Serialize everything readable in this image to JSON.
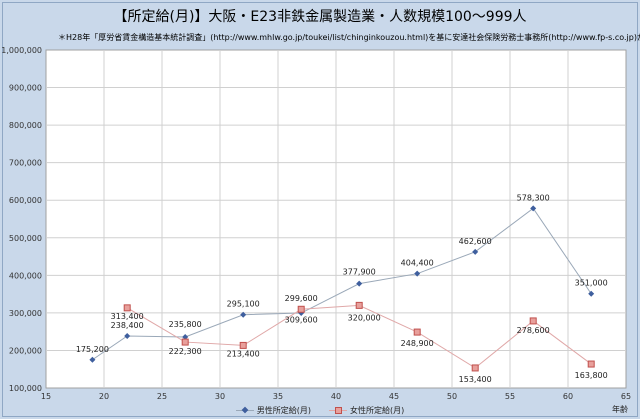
{
  "title": "【所定給(月)】大阪・E23非鉄金属製造業・人数規模100～999人",
  "subtitle": "＊H28年「厚労省賃金構造基本統計調査」(http://www.mhlw.go.jp/toukei/list/chinginkouzou.html)を基に安達社会保険労務士事務所(http://www.fp-s.co.jp)が作成",
  "colors": {
    "male_line": "#9aa8b8",
    "male_marker": "#3f5f9e",
    "female_line": "#e0a8a8",
    "female_marker": "#c0504d",
    "female_marker_fill": "#e8a09c",
    "grid": "#d0d0d0",
    "plot_bg": "#ffffff"
  },
  "chart_data": {
    "type": "line",
    "xlabel": "年齢",
    "ylabel": "",
    "xlim": [
      15,
      65
    ],
    "ylim": [
      100000,
      1000000
    ],
    "xticks": [
      "15",
      "20",
      "25",
      "30",
      "35",
      "40",
      "45",
      "50",
      "55",
      "60",
      "65"
    ],
    "yticks": [
      "100,000",
      "200,000",
      "300,000",
      "400,000",
      "500,000",
      "600,000",
      "700,000",
      "800,000",
      "900,000",
      "1,000,000"
    ],
    "grid": true,
    "legend_position": "bottom",
    "series": [
      {
        "name": "男性所定給(月)",
        "x": [
          19,
          22,
          27,
          32,
          37,
          42,
          47,
          52,
          57,
          62
        ],
        "values": [
          175200,
          238400,
          235800,
          295100,
          299600,
          377900,
          404400,
          462600,
          578300,
          351000
        ],
        "labels": [
          "175,200",
          "238,400",
          "235,800",
          "295,100",
          "299,600",
          "377,900",
          "404,400",
          "462,600",
          "578,300",
          "351,000"
        ]
      },
      {
        "name": "女性所定給(月)",
        "x": [
          22,
          27,
          32,
          37,
          42,
          47,
          52,
          57,
          62
        ],
        "values": [
          313400,
          222300,
          213400,
          309600,
          320000,
          248900,
          153400,
          278600,
          163800
        ],
        "labels": [
          "313,400",
          "222,300",
          "213,400",
          "309,600",
          "320,000",
          "248,900",
          "153,400",
          "278,600",
          "163,800"
        ]
      }
    ]
  }
}
